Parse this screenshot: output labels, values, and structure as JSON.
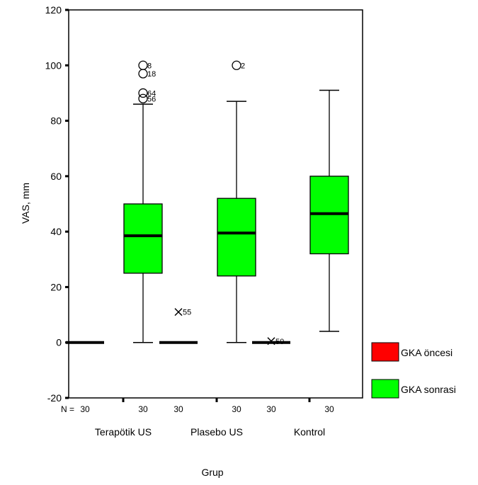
{
  "chart_data": {
    "type": "boxplot",
    "xlabel": "Grup",
    "ylabel": "VAS, mm",
    "ylim": [
      -20,
      120
    ],
    "yticks": [
      -20,
      0,
      20,
      40,
      60,
      80,
      100,
      120
    ],
    "grid": false,
    "legend_position": "right",
    "n_label": "N =",
    "categories": [
      "Terapötik US",
      "Plasebo US",
      "Kontrol"
    ],
    "series": [
      {
        "name": "GKA öncesi",
        "color": "#ff0000",
        "n": [
          "30",
          "30",
          "30"
        ],
        "boxes": [
          {
            "min": 0,
            "q1": 0,
            "median": 0,
            "q3": 0,
            "max": 0,
            "outliers": []
          },
          {
            "min": 0,
            "q1": 0,
            "median": 0,
            "q3": 0,
            "max": 0,
            "outliers": [
              {
                "value": 11,
                "label": "55",
                "marker": "x"
              }
            ]
          },
          {
            "min": 0,
            "q1": 0,
            "median": 0,
            "q3": 0,
            "max": 0,
            "outliers": [
              {
                "value": 0.5,
                "label": "50",
                "marker": "x"
              }
            ]
          }
        ]
      },
      {
        "name": "GKA sonrasi",
        "color": "#00ff00",
        "n": [
          "30",
          "30",
          "30"
        ],
        "boxes": [
          {
            "min": 0,
            "q1": 25,
            "median": 38.5,
            "q3": 50,
            "max": 86,
            "outliers": [
              {
                "value": 100,
                "label": "8",
                "marker": "o"
              },
              {
                "value": 97,
                "label": "18",
                "marker": "o"
              },
              {
                "value": 90,
                "label": "64",
                "marker": "o"
              },
              {
                "value": 88,
                "label": "56",
                "marker": "o"
              }
            ]
          },
          {
            "min": 0,
            "q1": 24,
            "median": 39.5,
            "q3": 52,
            "max": 87,
            "outliers": [
              {
                "value": 100,
                "label": "2",
                "marker": "o"
              }
            ]
          },
          {
            "min": 4,
            "q1": 32,
            "median": 46.5,
            "q3": 60,
            "max": 91,
            "outliers": []
          }
        ]
      }
    ]
  }
}
